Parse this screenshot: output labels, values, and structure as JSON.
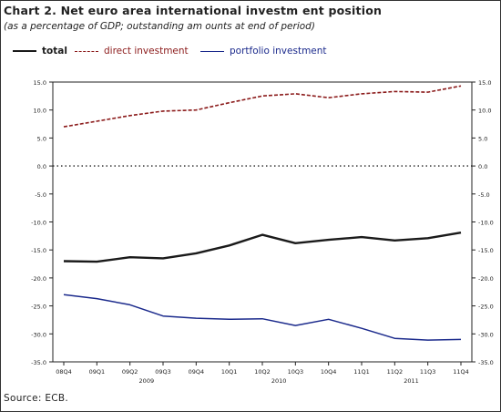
{
  "title": "Chart 2. Net euro area international investm ent position",
  "subtitle": "(as a percentage of GDP; outstanding am ounts at end of period)",
  "source": "Source: ECB.",
  "chart_data": {
    "type": "line",
    "categories": [
      "08Q4",
      "09Q1",
      "09Q2",
      "09Q3",
      "09Q4",
      "10Q1",
      "10Q2",
      "10Q3",
      "10Q4",
      "11Q1",
      "11Q2",
      "11Q3",
      "11Q4"
    ],
    "year_labels": [
      {
        "label": "2009",
        "from": 1,
        "to": 4
      },
      {
        "label": "2010",
        "from": 5,
        "to": 8
      },
      {
        "label": "2011",
        "from": 9,
        "to": 12
      }
    ],
    "ylim": [
      -35,
      15
    ],
    "yticks": [
      15,
      10,
      5,
      0,
      -5,
      -10,
      -15,
      -20,
      -25,
      -30,
      -35
    ],
    "ytick_labels": [
      "15.0",
      "10.0",
      "5.0",
      "0.0",
      "-5.0",
      "-10.0",
      "-15.0",
      "-20.0",
      "-25.0",
      "-30.0",
      "-35.0"
    ],
    "zero_line": "dotted",
    "series": [
      {
        "name": "total",
        "style": "solid-thick",
        "color": "#1a1a1a",
        "values": [
          -17.0,
          -17.1,
          -16.3,
          -16.5,
          -15.6,
          -14.2,
          -12.3,
          -13.8,
          -13.2,
          -12.7,
          -13.3,
          -12.9,
          -11.9
        ]
      },
      {
        "name": "direct investment",
        "style": "dashed",
        "color": "#8b1a1a",
        "values": [
          7.0,
          8.0,
          9.0,
          9.8,
          10.0,
          11.3,
          12.5,
          12.9,
          12.2,
          12.9,
          13.3,
          13.2,
          14.3
        ]
      },
      {
        "name": "portfolio investment",
        "style": "solid",
        "color": "#1b2a8c",
        "values": [
          -23.0,
          -23.7,
          -24.8,
          -26.8,
          -27.2,
          -27.4,
          -27.3,
          -28.5,
          -27.4,
          -29.0,
          -30.8,
          -31.1,
          -31.0
        ]
      }
    ]
  }
}
